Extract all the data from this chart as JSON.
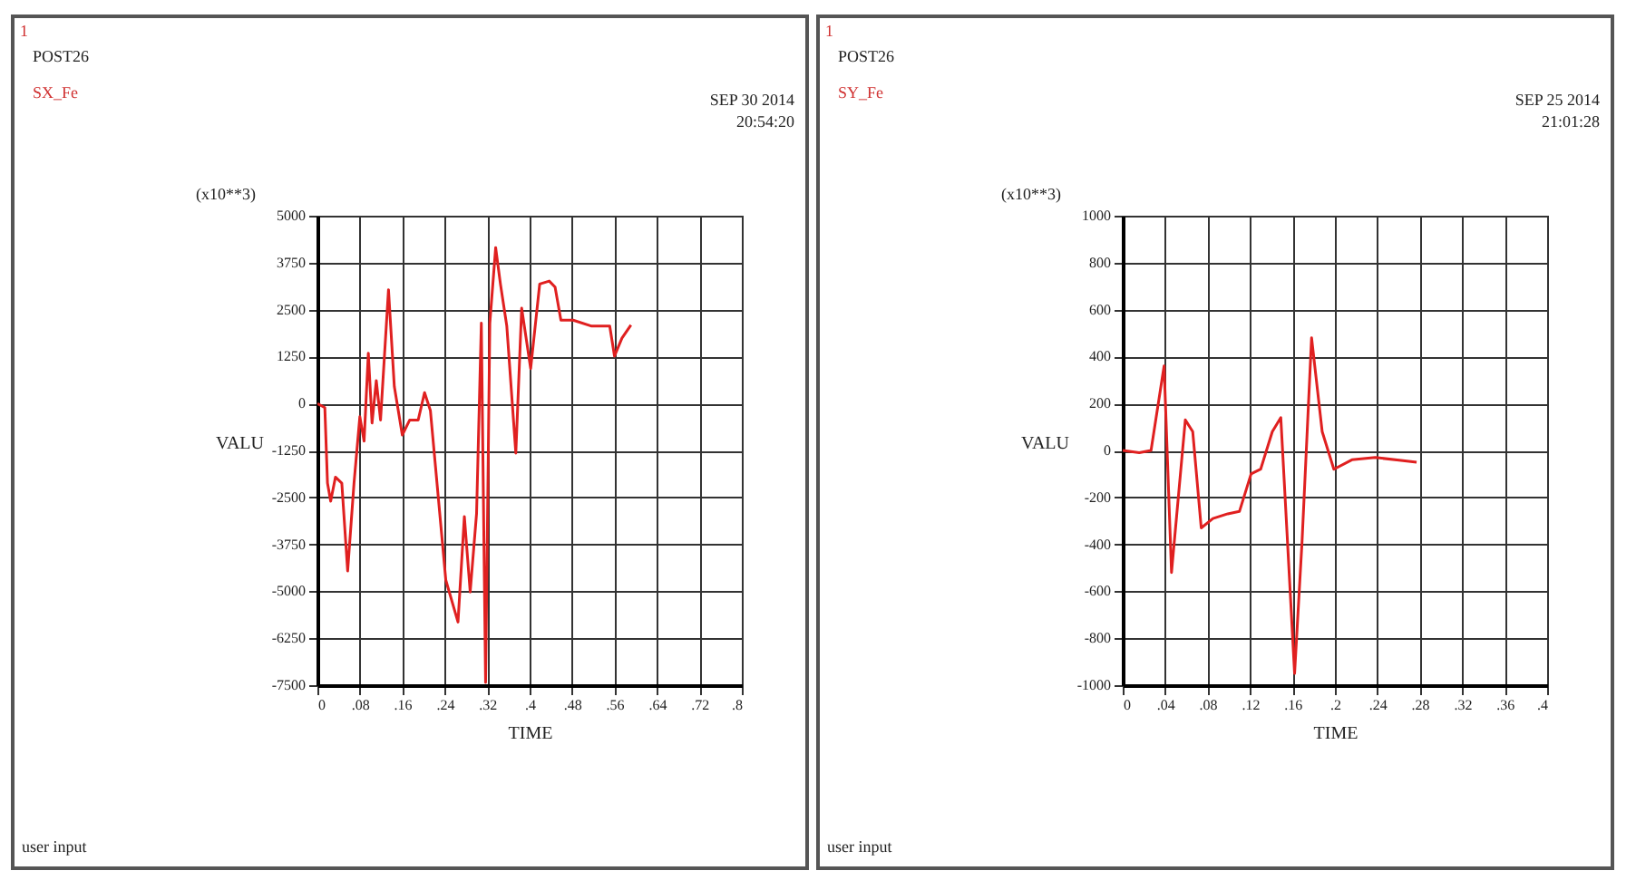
{
  "chart_data": [
    {
      "type": "line",
      "xlabel": "TIME",
      "ylabel": "VALU",
      "annotations": [
        "1",
        "POST26",
        "SX_Fe",
        "SEP 30 2014",
        "20:54:20",
        "(x10**3)",
        "user input"
      ],
      "grid": true,
      "marker": "none",
      "xlim": [
        0,
        0.8
      ],
      "xticks": [
        0,
        {
          "value": 0.08,
          "label": ".08"
        },
        {
          "value": 0.16,
          "label": ".16"
        },
        {
          "value": 0.24,
          "label": ".24"
        },
        {
          "value": 0.32,
          "label": ".32"
        },
        {
          "value": 0.4,
          "label": ".4"
        },
        {
          "value": 0.48,
          "label": ".48"
        },
        {
          "value": 0.56,
          "label": ".56"
        },
        {
          "value": 0.64,
          "label": ".64"
        },
        {
          "value": 0.72,
          "label": ".72"
        },
        {
          "value": 0.8,
          "label": ".8"
        }
      ],
      "ylim": [
        -7500,
        5000
      ],
      "yticks": [
        -7500,
        -6250,
        -5000,
        -3750,
        -2500,
        -1250,
        0,
        1250,
        2500,
        3750,
        5000
      ],
      "x": [
        0,
        0.014,
        0.019,
        0.025,
        0.034,
        0.046,
        0.057,
        0.069,
        0.08,
        0.088,
        0.096,
        0.103,
        0.111,
        0.119,
        0.134,
        0.145,
        0.16,
        0.174,
        0.19,
        0.202,
        0.213,
        0.242,
        0.265,
        0.277,
        0.288,
        0.3,
        0.309,
        0.317,
        0.325,
        0.336,
        0.345,
        0.357,
        0.374,
        0.385,
        0.402,
        0.419,
        0.437,
        0.448,
        0.459,
        0.482,
        0.517,
        0.551,
        0.56,
        0.574,
        0.591
      ],
      "series": [
        {
          "color": "#e02020",
          "values": [
            0,
            -110,
            -2120,
            -2600,
            -1960,
            -2120,
            -4460,
            -2120,
            -350,
            -1000,
            1340,
            -520,
            610,
            -440,
            3030,
            450,
            -840,
            -440,
            -440,
            290,
            -190,
            -4700,
            -5820,
            -3010,
            -5020,
            -2930,
            2140,
            -7430,
            2140,
            4150,
            3180,
            2060,
            -1320,
            2540,
            930,
            3180,
            3260,
            3100,
            2220,
            2220,
            2060,
            2060,
            1260,
            1740,
            2090
          ]
        }
      ]
    },
    {
      "type": "line",
      "xlabel": "TIME",
      "ylabel": "VALU",
      "annotations": [
        "1",
        "POST26",
        "SY_Fe",
        "SEP 25 2014",
        "21:01:28",
        "(x10**3)",
        "user input"
      ],
      "grid": true,
      "marker": "none",
      "xlim": [
        0,
        0.4
      ],
      "xticks": [
        0,
        {
          "value": 0.04,
          "label": ".04"
        },
        {
          "value": 0.08,
          "label": ".08"
        },
        {
          "value": 0.12,
          "label": ".12"
        },
        {
          "value": 0.16,
          "label": ".16"
        },
        {
          "value": 0.2,
          "label": ".2"
        },
        {
          "value": 0.24,
          "label": ".24"
        },
        {
          "value": 0.28,
          "label": ".28"
        },
        {
          "value": 0.32,
          "label": ".32"
        },
        {
          "value": 0.36,
          "label": ".36"
        },
        {
          "value": 0.4,
          "label": ".4"
        }
      ],
      "ylim": [
        -1000,
        1000
      ],
      "yticks": [
        -1000,
        -800,
        -600,
        -400,
        -200,
        0,
        200,
        400,
        600,
        800,
        1000
      ],
      "x": [
        0,
        0.0156,
        0.0267,
        0.039,
        0.046,
        0.059,
        0.066,
        0.074,
        0.085,
        0.099,
        0.11,
        0.121,
        0.13,
        0.141,
        0.149,
        0.162,
        0.169,
        0.178,
        0.188,
        0.199,
        0.216,
        0.238,
        0.277
      ],
      "series": [
        {
          "color": "#e02020",
          "values": [
            0,
            -10,
            0,
            360,
            -520,
            130,
            80,
            -330,
            -290,
            -270,
            -260,
            -100,
            -80,
            80,
            140,
            -950,
            -390,
            480,
            80,
            -80,
            -40,
            -30,
            -50
          ]
        }
      ]
    }
  ]
}
